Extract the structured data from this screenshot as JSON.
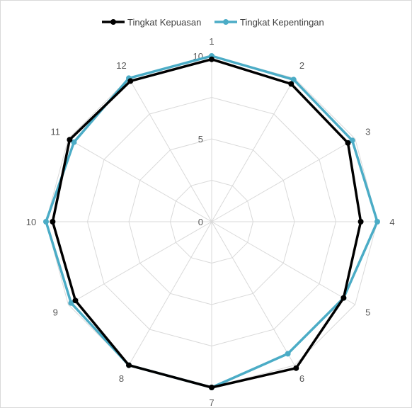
{
  "chart_data": {
    "type": "radar",
    "categories": [
      "1",
      "2",
      "3",
      "4",
      "5",
      "6",
      "7",
      "8",
      "9",
      "10",
      "11",
      "12"
    ],
    "rlim": [
      0,
      10
    ],
    "tick_values": [
      0,
      5,
      10
    ],
    "tick_labels": [
      "0",
      "5",
      "10"
    ],
    "grid": true,
    "legend_position": "top",
    "series": [
      {
        "name": "Tingkat Kepuasan",
        "color": "#000000",
        "values": [
          9.8,
          9.6,
          9.5,
          9.0,
          9.2,
          10.2,
          10.0,
          10.0,
          9.5,
          9.6,
          9.9,
          9.8
        ]
      },
      {
        "name": "Tingkat Kepentingan",
        "color": "#4BACC6",
        "values": [
          10.0,
          9.9,
          9.8,
          10.0,
          9.2,
          9.2,
          10.0,
          10.0,
          9.8,
          10.0,
          9.6,
          10.0
        ]
      }
    ]
  }
}
